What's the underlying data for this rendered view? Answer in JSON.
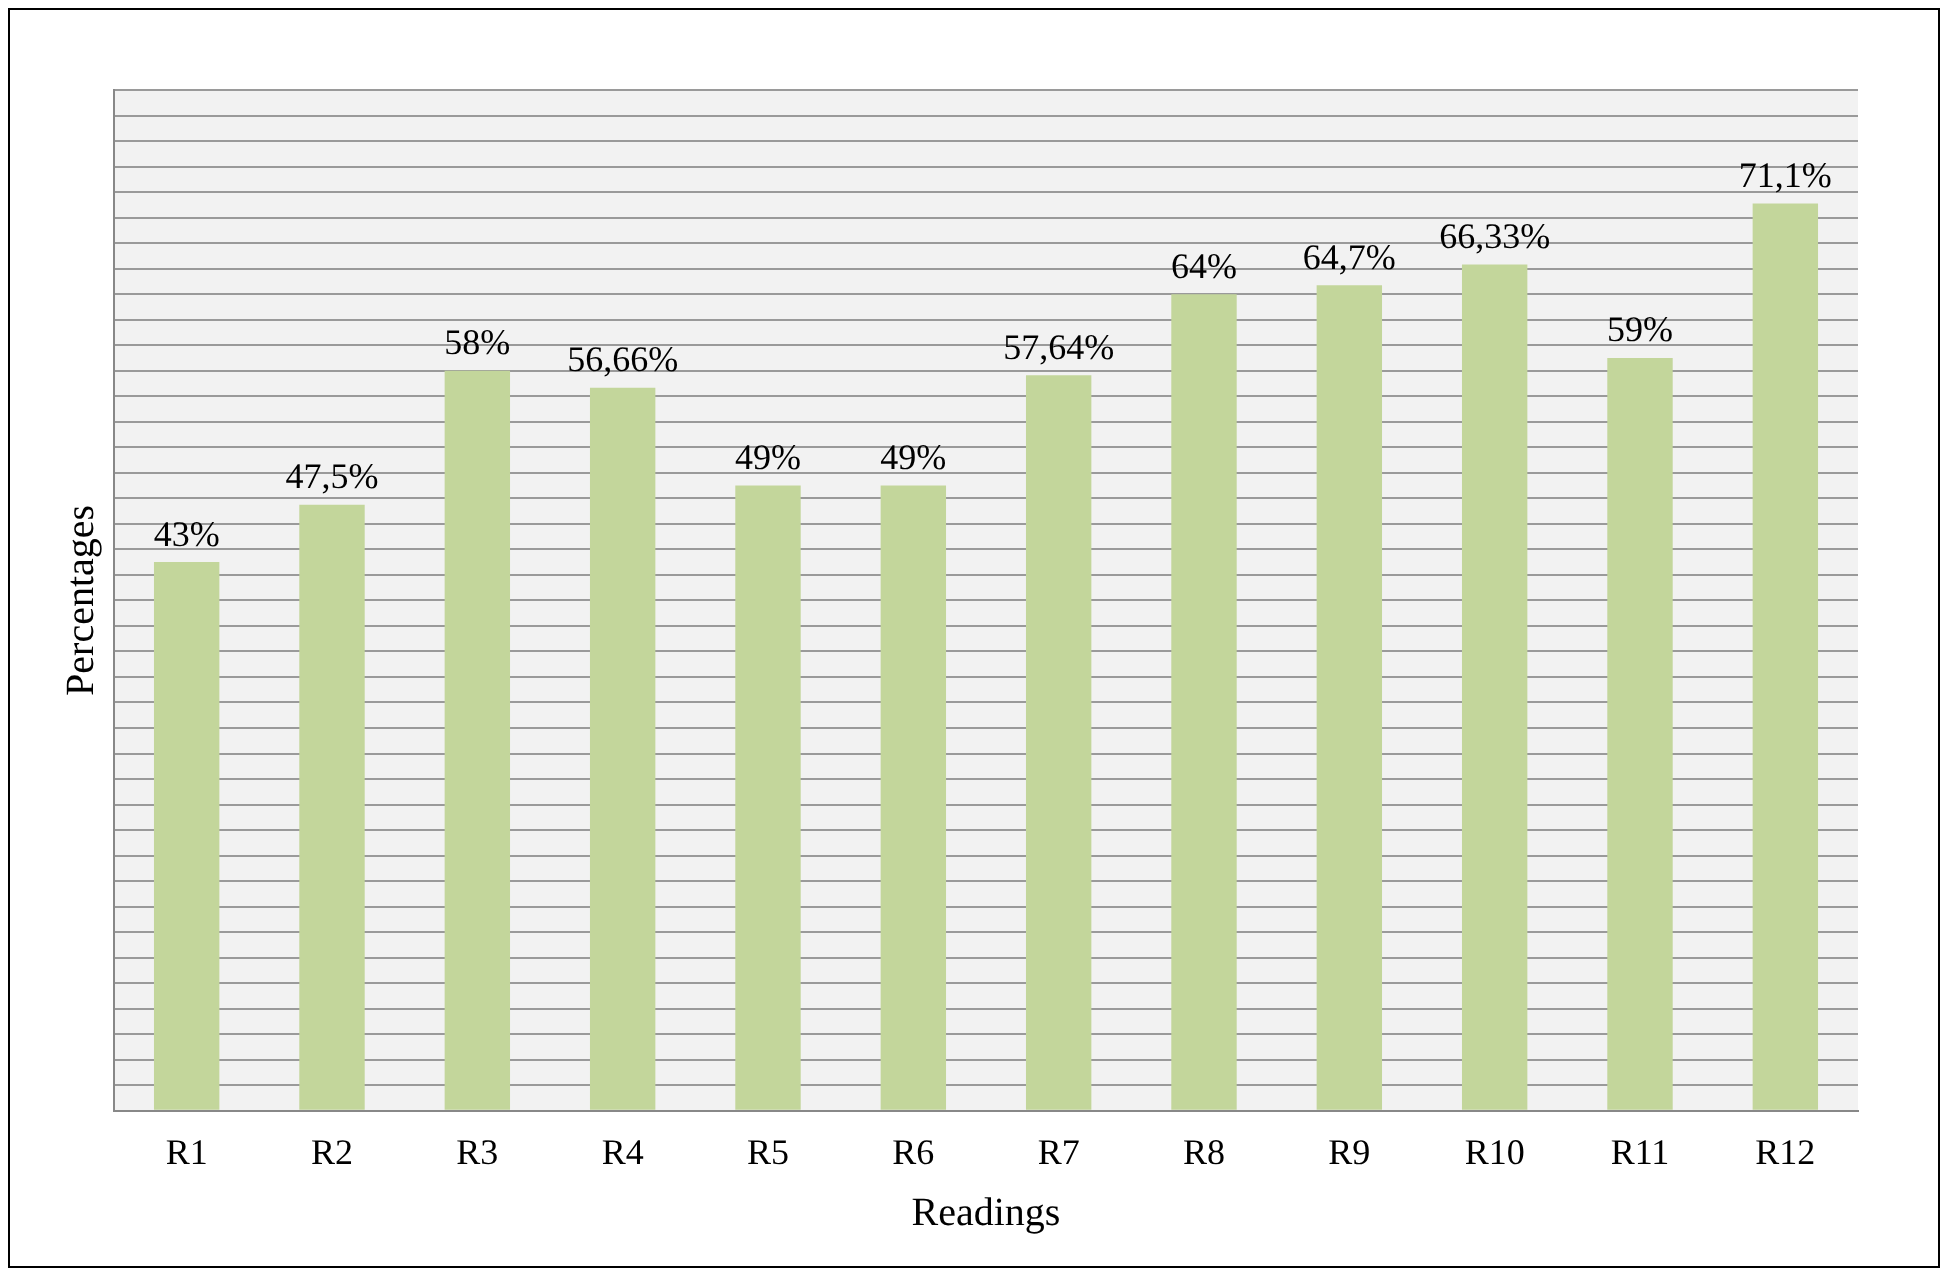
{
  "chart_data": {
    "type": "bar",
    "xlabel": "Readings",
    "ylabel": "Percentages",
    "categories": [
      "R1",
      "R2",
      "R3",
      "R4",
      "R5",
      "R6",
      "R7",
      "R8",
      "R9",
      "R10",
      "R11",
      "R12"
    ],
    "values": [
      43,
      47.5,
      58,
      56.66,
      49,
      49,
      57.64,
      64,
      64.7,
      66.33,
      59,
      71.1
    ],
    "value_labels": [
      "43%",
      "47,5%",
      "58%",
      "56,66%",
      "49%",
      "49%",
      "57,64%",
      "64%",
      "64,7%",
      "66,33%",
      "59%",
      "71,1%"
    ],
    "color": "#c3d69b",
    "ylim": [
      0,
      80
    ],
    "yticks": [
      {
        "value": 0,
        "label": null
      },
      {
        "value": 2,
        "label": null
      },
      {
        "value": 4,
        "label": null
      },
      {
        "value": 6,
        "label": null
      },
      {
        "value": 8,
        "label": null
      },
      {
        "value": 10,
        "label": null
      },
      {
        "value": 12,
        "label": null
      },
      {
        "value": 14,
        "label": null
      },
      {
        "value": 16,
        "label": null
      },
      {
        "value": 18,
        "label": null
      },
      {
        "value": 20,
        "label": null
      },
      {
        "value": 22,
        "label": null
      },
      {
        "value": 24,
        "label": null
      },
      {
        "value": 26,
        "label": null
      },
      {
        "value": 28,
        "label": null
      },
      {
        "value": 30,
        "label": null
      },
      {
        "value": 32,
        "label": null
      },
      {
        "value": 34,
        "label": null
      },
      {
        "value": 36,
        "label": null
      },
      {
        "value": 38,
        "label": null
      },
      {
        "value": 40,
        "label": null
      },
      {
        "value": 42,
        "label": null
      },
      {
        "value": 44,
        "label": null
      },
      {
        "value": 46,
        "label": null
      },
      {
        "value": 48,
        "label": null
      },
      {
        "value": 50,
        "label": null
      },
      {
        "value": 52,
        "label": null
      },
      {
        "value": 54,
        "label": null
      },
      {
        "value": 56,
        "label": null
      },
      {
        "value": 58,
        "label": null
      },
      {
        "value": 60,
        "label": null
      },
      {
        "value": 62,
        "label": null
      },
      {
        "value": 64,
        "label": null
      },
      {
        "value": 66,
        "label": null
      },
      {
        "value": 68,
        "label": null
      },
      {
        "value": 70,
        "label": null
      },
      {
        "value": 72,
        "label": null
      },
      {
        "value": 74,
        "label": null
      },
      {
        "value": 76,
        "label": null
      },
      {
        "value": 78,
        "label": null
      },
      {
        "value": 80,
        "label": null
      }
    ],
    "grid": "y",
    "tick_labels": "x",
    "legend": false
  }
}
